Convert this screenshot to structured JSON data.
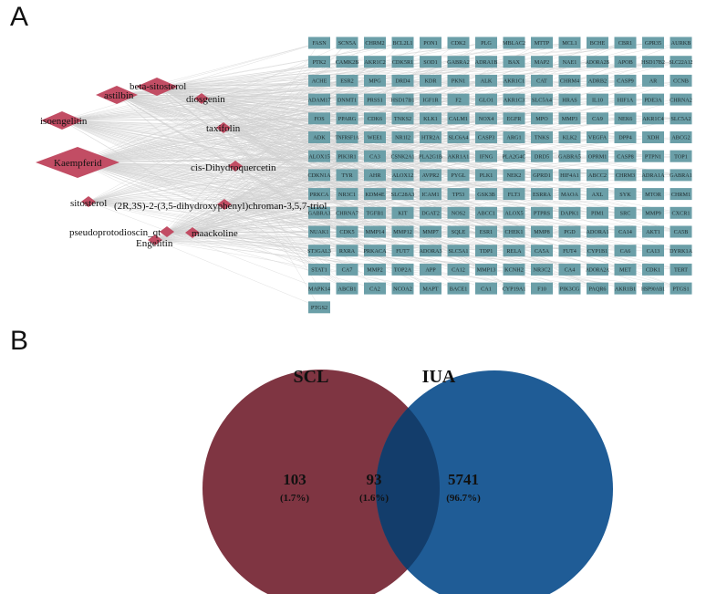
{
  "panel_a": {
    "letter": "A",
    "compounds": [
      {
        "name": "astilbin",
        "label": "astilbin",
        "size": "m"
      },
      {
        "name": "beta-sitosterol",
        "label": "beta-sitosterol",
        "size": "m"
      },
      {
        "name": "diosgenin",
        "label": "diosgenin",
        "size": "s"
      },
      {
        "name": "isoengelitin",
        "label": "isoengelitin",
        "size": "m"
      },
      {
        "name": "taxifolin",
        "label": "taxifolin",
        "size": "s"
      },
      {
        "name": "kaempferid",
        "label": "Kaempferid",
        "size": "l"
      },
      {
        "name": "cis-dihydroquercetin",
        "label": "cis-Dihydroquercetin",
        "size": "s"
      },
      {
        "name": "sitosterol",
        "label": "sitosterol",
        "size": "s"
      },
      {
        "name": "chromantriol",
        "label": "(2R,3S)-2-(3,5-dihydroxyphenyl)chroman-3,5,7-triol",
        "size": "s"
      },
      {
        "name": "pseudoprotodioscin",
        "label": "pseudoprotodioscin_qt",
        "size": "s"
      },
      {
        "name": "maackoline",
        "label": "maackoline",
        "size": "s"
      },
      {
        "name": "engelitin",
        "label": "Engelitin",
        "size": "s"
      }
    ],
    "gene_rows": [
      [
        "FASN",
        "SCN5A",
        "CHRM2",
        "BCL2L1",
        "PON1",
        "CDK2",
        "PLG",
        "MBLAC2",
        "MTTP",
        "MCL1",
        "BCHE",
        "CBR1",
        "GPR35",
        "AURKB"
      ],
      [
        "PTK2",
        "CAMK2B",
        "AKR1C2",
        "CDK5R1",
        "SOD1",
        "GABRA2",
        "ADRA1B",
        "BAX",
        "MAP2",
        "NAE1",
        "ADORA2B",
        "APOB",
        "HSD17B2",
        "SLC22A12"
      ],
      [
        "ACHE",
        "ESR2",
        "MPG",
        "DRD4",
        "KDR",
        "PKN1",
        "ALK",
        "AKR1C1",
        "CAT",
        "CHRM4",
        "ADRB2",
        "CASP9",
        "AR",
        "CCNB"
      ],
      [
        "ADAM17",
        "DNMT1",
        "PRSS1",
        "HSD17B1",
        "IGF1R",
        "F2",
        "GLO1",
        "AKR1C3",
        "SLC5A4",
        "HRAS",
        "IL10",
        "HIF1A",
        "PDE3A",
        "CHRNA2"
      ],
      [
        "FOS",
        "PPARG",
        "CDK6",
        "TNKS2",
        "KLK1",
        "CALM1",
        "NOX4",
        "EGFR",
        "MPO",
        "MMP3",
        "CA9",
        "NEK6",
        "AKR1C4",
        "SLC5A2"
      ],
      [
        "ADK",
        "TNFRSF1A",
        "WEE1",
        "NR1I2",
        "HTR2A",
        "SLC6A4",
        "CASP3",
        "ARG1",
        "TNKS",
        "KLK2",
        "VEGFA",
        "DPP4",
        "XDH",
        "ABCG2"
      ],
      [
        "ALOX15",
        "PIK3R1",
        "CA3",
        "CSNK2A1",
        "PLA2G1B",
        "AKR1A1",
        "IFNG",
        "PLA2G4C",
        "DRD5",
        "GABRA5",
        "OPRM1",
        "CASP8",
        "PTPN1",
        "TOP1"
      ],
      [
        "CDKN1A",
        "TYR",
        "AHR",
        "ALOX12",
        "AVPR2",
        "PYGL",
        "PLK1",
        "NEK2",
        "GPRD1",
        "HIF4A1",
        "ABCC2",
        "CHRM3",
        "ADRA1A",
        "GABRA1"
      ],
      [
        "PRKCA",
        "NR3C1",
        "KDM4E",
        "SLC28A3",
        "ICAM1",
        "TP53",
        "GSK3B",
        "FLT3",
        "ESRRA",
        "MAOA",
        "AXL",
        "SYK",
        "MTOR",
        "CHRM1"
      ],
      [
        "GABRA3",
        "CHRNA7",
        "TGFB1",
        "KIT",
        "DGAT2",
        "NOS2",
        "ABCC1",
        "ALOX5",
        "PTPRS",
        "DAPK1",
        "PIM1",
        "SRC",
        "MMP9",
        "CXCR1"
      ],
      [
        "NUAK1",
        "CDK5",
        "MMP14",
        "MMP12",
        "MMP7",
        "SQLE",
        "ESR1",
        "CHEK1",
        "MMP8",
        "PGD",
        "ADORA1",
        "CA14",
        "AKT1",
        "CA5B"
      ],
      [
        "ST3GAL3",
        "RXRA",
        "PRKACA",
        "FUT7",
        "ADORA3",
        "SLC5A1",
        "TDP1",
        "RELA",
        "CA5A",
        "FUT4",
        "CYP1B1",
        "CA6",
        "CA13",
        "DYRK1A"
      ],
      [
        "STAT1",
        "CA7",
        "MMP2",
        "TOP2A",
        "APP",
        "CA12",
        "MMP13",
        "KCNH2",
        "NR3C2",
        "CA4",
        "ADORA2A",
        "MET",
        "CDK1",
        "TERT"
      ],
      [
        "MAPK14",
        "ABCB1",
        "CA2",
        "NCOA2",
        "MAPT",
        "BACE1",
        "CA1",
        "CYP19A1",
        "F10",
        "PIK3CG",
        "PAQR6",
        "AKR1B1",
        "HSP90AB1",
        "PTGS1"
      ],
      [
        "PTGS2"
      ]
    ],
    "colors": {
      "compound": "#c24d64",
      "gene": "#6b9fa8",
      "edge": "#cfcfcf"
    }
  },
  "panel_b": {
    "letter": "B",
    "left_set": {
      "title": "SCL",
      "unique_count": "103",
      "unique_pct": "(1.7%)",
      "color": "#7f3542"
    },
    "right_set": {
      "title": "IUA",
      "unique_count": "5741",
      "unique_pct": "(96.7%)",
      "color": "#1f5c96"
    },
    "intersection": {
      "count": "93",
      "pct": "(1.6%)",
      "color": "#133d6b"
    }
  }
}
